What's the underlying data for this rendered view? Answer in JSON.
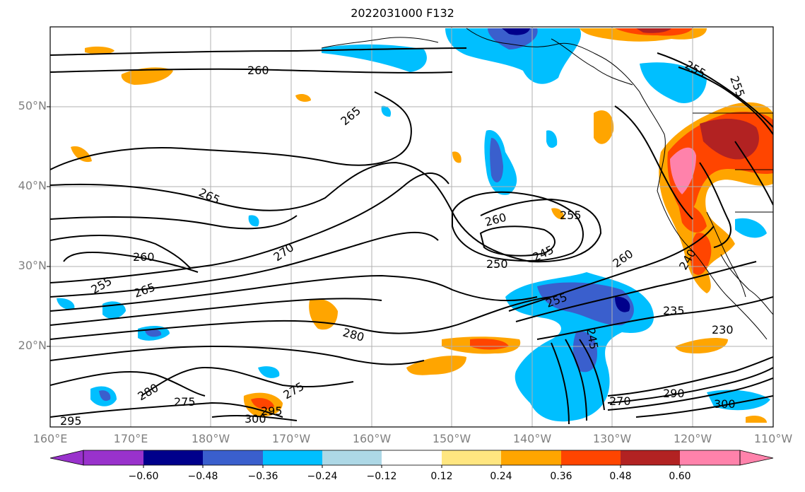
{
  "title": "2022031000 F132",
  "lat_labels": [
    "50°N",
    "40°N",
    "30°N",
    "20°N"
  ],
  "lon_labels": [
    "160°E",
    "170°E",
    "180°W",
    "170°W",
    "160°W",
    "150°W",
    "140°W",
    "130°W",
    "120°W",
    "110°W"
  ],
  "contour_labels": [
    "260",
    "265",
    "265",
    "260",
    "255",
    "265",
    "270",
    "260",
    "255",
    "250",
    "245",
    "260",
    "255",
    "235",
    "230",
    "280",
    "275",
    "280",
    "295",
    "300",
    "295",
    "275",
    "240",
    "270",
    "290",
    "300",
    "255",
    "255",
    "245"
  ],
  "colorbar": {
    "ticks": [
      "−0.60",
      "−0.48",
      "−0.36",
      "−0.24",
      "−0.12",
      "0.12",
      "0.24",
      "0.36",
      "0.48",
      "0.60"
    ],
    "colors": [
      "#9932cc",
      "#00008b",
      "#3a5fcd",
      "#00bfff",
      "#add8e6",
      "#ffffff",
      "#ffe680",
      "#ffa500",
      "#ff4500",
      "#b22222",
      "#ff82ab"
    ]
  }
}
